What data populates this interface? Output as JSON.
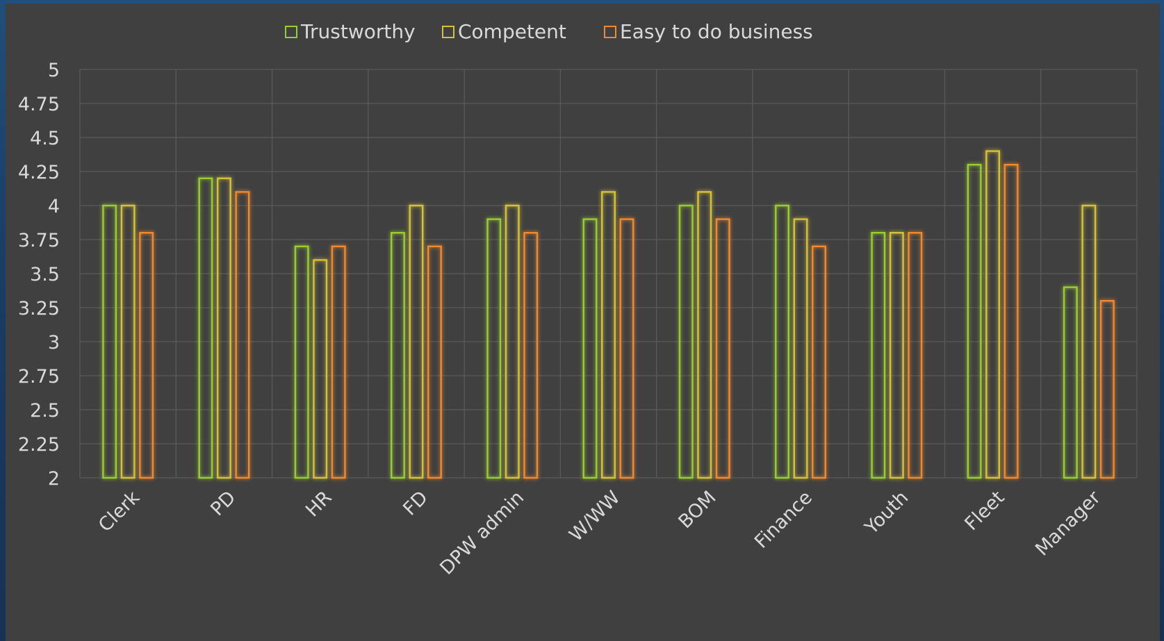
{
  "chart_data": {
    "type": "bar",
    "categories": [
      "Clerk",
      "PD",
      "HR",
      "FD",
      "DPW admin",
      "W/WW",
      "BOM",
      "Finance",
      "Youth",
      "Fleet",
      "Manager"
    ],
    "series": [
      {
        "name": "Trustworthy",
        "color": "#9acd32",
        "values": [
          4.0,
          4.2,
          3.7,
          3.8,
          3.9,
          3.9,
          4.0,
          4.0,
          3.8,
          4.3,
          3.4
        ]
      },
      {
        "name": "Competent",
        "color": "#d4c23a",
        "values": [
          4.0,
          4.2,
          3.6,
          4.0,
          4.0,
          4.1,
          4.1,
          3.9,
          3.8,
          4.4,
          4.0
        ]
      },
      {
        "name": "Easy to do business",
        "color": "#f08a2e",
        "values": [
          3.8,
          4.1,
          3.7,
          3.7,
          3.8,
          3.9,
          3.9,
          3.7,
          3.8,
          4.3,
          3.3
        ]
      }
    ],
    "ylim": [
      2,
      5
    ],
    "yticks": [
      "2",
      "2.25",
      "2.5",
      "2.75",
      "3",
      "3.25",
      "3.5",
      "3.75",
      "4",
      "4.25",
      "4.5",
      "4.75",
      "5"
    ],
    "grid": true,
    "legend": "top",
    "xlabel": "",
    "ylabel": "",
    "title": ""
  }
}
